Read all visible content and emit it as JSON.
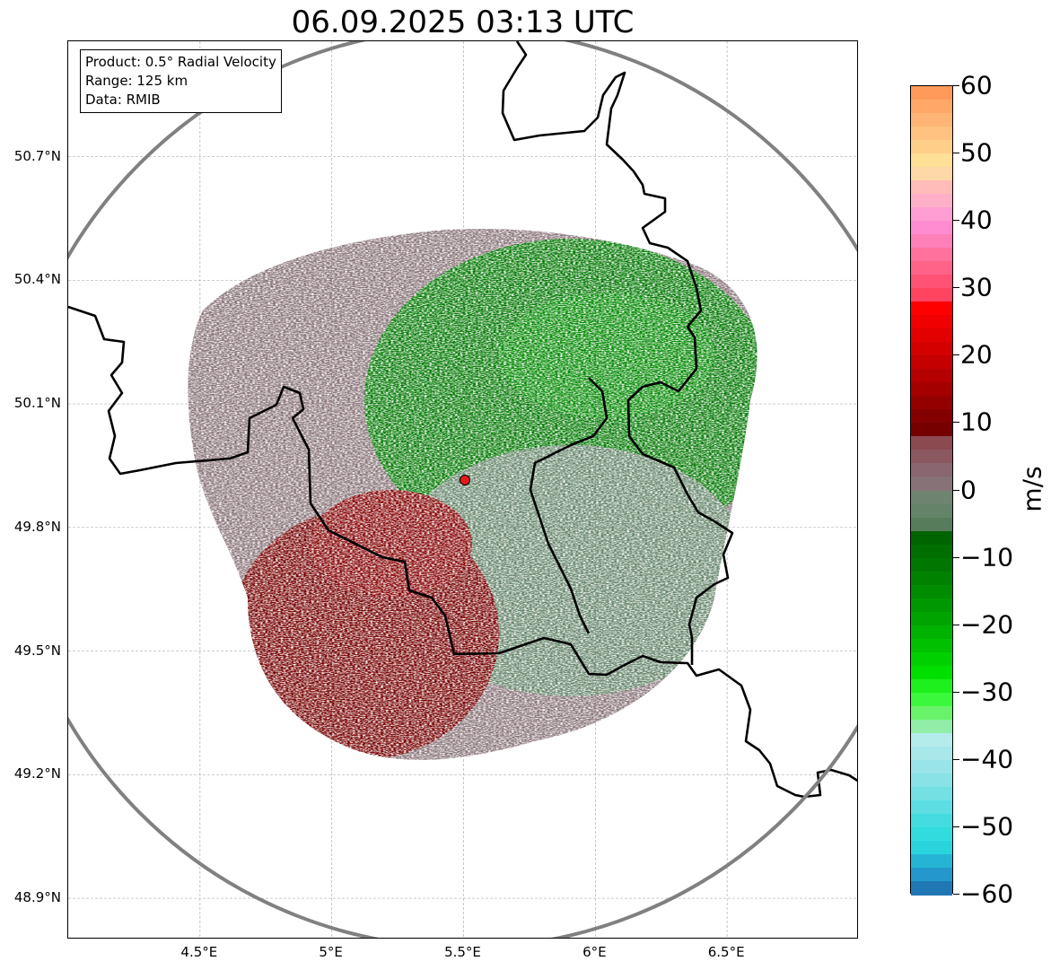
{
  "title": "06.09.2025 03:13 UTC",
  "info_box": {
    "product": "Product: 0.5° Radial Velocity",
    "range": "Range: 125 km",
    "data_source": "Data: RMIB"
  },
  "map": {
    "lon_range": [
      4.0,
      7.0
    ],
    "lat_range": [
      48.8,
      50.98
    ],
    "x_ticks": [
      {
        "lon": 4.5,
        "label": "4.5°E"
      },
      {
        "lon": 5.0,
        "label": "5°E"
      },
      {
        "lon": 5.5,
        "label": "5.5°E"
      },
      {
        "lon": 6.0,
        "label": "6°E"
      },
      {
        "lon": 6.5,
        "label": "6.5°E"
      }
    ],
    "y_ticks": [
      {
        "lat": 50.7,
        "label": "50.7°N"
      },
      {
        "lat": 50.4,
        "label": "50.4°N"
      },
      {
        "lat": 50.1,
        "label": "50.1°N"
      },
      {
        "lat": 49.8,
        "label": "49.8°N"
      },
      {
        "lat": 49.5,
        "label": "49.5°N"
      },
      {
        "lat": 49.2,
        "label": "49.2°N"
      },
      {
        "lat": 48.9,
        "label": "48.9°N"
      }
    ],
    "grid": true,
    "radar_site": {
      "lon": 5.505,
      "lat": 49.915,
      "color": "#e31a1c"
    },
    "range_ring_color": "#808080",
    "border_color": "#000000"
  },
  "colorbar": {
    "unit": "m/s",
    "min": -60,
    "max": 60,
    "ticks": [
      {
        "value": 60,
        "label": "60"
      },
      {
        "value": 50,
        "label": "50"
      },
      {
        "value": 40,
        "label": "40"
      },
      {
        "value": 30,
        "label": "30"
      },
      {
        "value": 20,
        "label": "20"
      },
      {
        "value": 10,
        "label": "10"
      },
      {
        "value": 0,
        "label": "0"
      },
      {
        "value": -10,
        "label": "−10"
      },
      {
        "value": -20,
        "label": "−20"
      },
      {
        "value": -30,
        "label": "−30"
      },
      {
        "value": -40,
        "label": "−40"
      },
      {
        "value": -50,
        "label": "−50"
      },
      {
        "value": -60,
        "label": "−60"
      }
    ],
    "segments": [
      {
        "from": 58,
        "to": 60,
        "color": "#ff9a5a"
      },
      {
        "from": 56,
        "to": 58,
        "color": "#ffa868"
      },
      {
        "from": 54,
        "to": 56,
        "color": "#ffb575"
      },
      {
        "from": 52,
        "to": 54,
        "color": "#ffc280"
      },
      {
        "from": 50,
        "to": 52,
        "color": "#ffcf8a"
      },
      {
        "from": 48,
        "to": 50,
        "color": "#ffe096"
      },
      {
        "from": 46,
        "to": 48,
        "color": "#ffd8a8"
      },
      {
        "from": 44,
        "to": 46,
        "color": "#ffbcb8"
      },
      {
        "from": 42,
        "to": 44,
        "color": "#ffb0c8"
      },
      {
        "from": 40,
        "to": 42,
        "color": "#ff9ed2"
      },
      {
        "from": 38,
        "to": 40,
        "color": "#ff8cd0"
      },
      {
        "from": 36,
        "to": 38,
        "color": "#ff80b8"
      },
      {
        "from": 34,
        "to": 36,
        "color": "#ff729e"
      },
      {
        "from": 32,
        "to": 34,
        "color": "#ff6488"
      },
      {
        "from": 30,
        "to": 32,
        "color": "#ff5274"
      },
      {
        "from": 28,
        "to": 30,
        "color": "#ff4460"
      },
      {
        "from": 26,
        "to": 28,
        "color": "#ff0000"
      },
      {
        "from": 24,
        "to": 26,
        "color": "#f00000"
      },
      {
        "from": 22,
        "to": 24,
        "color": "#e20000"
      },
      {
        "from": 20,
        "to": 22,
        "color": "#d40000"
      },
      {
        "from": 18,
        "to": 20,
        "color": "#c40000"
      },
      {
        "from": 16,
        "to": 18,
        "color": "#b40000"
      },
      {
        "from": 14,
        "to": 16,
        "color": "#a40000"
      },
      {
        "from": 12,
        "to": 14,
        "color": "#940000"
      },
      {
        "from": 10,
        "to": 12,
        "color": "#840000"
      },
      {
        "from": 8,
        "to": 10,
        "color": "#760000"
      },
      {
        "from": 6,
        "to": 8,
        "color": "#8a4a50"
      },
      {
        "from": 4,
        "to": 6,
        "color": "#8c5860"
      },
      {
        "from": 2,
        "to": 4,
        "color": "#8a6670"
      },
      {
        "from": 0,
        "to": 2,
        "color": "#877277"
      },
      {
        "from": -2,
        "to": 0,
        "color": "#6f8470"
      },
      {
        "from": -4,
        "to": -2,
        "color": "#638468"
      },
      {
        "from": -6,
        "to": -4,
        "color": "#567c5c"
      },
      {
        "from": -8,
        "to": -6,
        "color": "#006400"
      },
      {
        "from": -10,
        "to": -8,
        "color": "#006e00"
      },
      {
        "from": -12,
        "to": -10,
        "color": "#007800"
      },
      {
        "from": -14,
        "to": -12,
        "color": "#008200"
      },
      {
        "from": -16,
        "to": -14,
        "color": "#008c00"
      },
      {
        "from": -18,
        "to": -16,
        "color": "#009800"
      },
      {
        "from": -20,
        "to": -18,
        "color": "#00a400"
      },
      {
        "from": -22,
        "to": -20,
        "color": "#00b200"
      },
      {
        "from": -24,
        "to": -22,
        "color": "#00c000"
      },
      {
        "from": -26,
        "to": -24,
        "color": "#00d000"
      },
      {
        "from": -28,
        "to": -26,
        "color": "#00e000"
      },
      {
        "from": -30,
        "to": -28,
        "color": "#1ef01e"
      },
      {
        "from": -32,
        "to": -30,
        "color": "#3cf83c"
      },
      {
        "from": -34,
        "to": -32,
        "color": "#6af26a"
      },
      {
        "from": -36,
        "to": -34,
        "color": "#90eea8"
      },
      {
        "from": -38,
        "to": -36,
        "color": "#b4ecec"
      },
      {
        "from": -40,
        "to": -38,
        "color": "#a8e8ea"
      },
      {
        "from": -42,
        "to": -40,
        "color": "#98e4e8"
      },
      {
        "from": -44,
        "to": -42,
        "color": "#88e2e6"
      },
      {
        "from": -46,
        "to": -44,
        "color": "#74e0e4"
      },
      {
        "from": -48,
        "to": -46,
        "color": "#5cdee2"
      },
      {
        "from": -50,
        "to": -48,
        "color": "#44dce0"
      },
      {
        "from": -52,
        "to": -50,
        "color": "#32dcde"
      },
      {
        "from": -54,
        "to": -52,
        "color": "#2ad4dc"
      },
      {
        "from": -56,
        "to": -54,
        "color": "#26b4d4"
      },
      {
        "from": -58,
        "to": -56,
        "color": "#2498cc"
      },
      {
        "from": -60,
        "to": -58,
        "color": "#1f77b4"
      }
    ]
  },
  "velocity_regions": [
    {
      "name": "inbound-northeast",
      "center": {
        "lon": 5.9,
        "lat": 50.2
      },
      "color": "#007800"
    },
    {
      "name": "inbound-east",
      "center": {
        "lon": 6.2,
        "lat": 49.75
      },
      "color": "#638468"
    },
    {
      "name": "outbound-southwest",
      "center": {
        "lon": 5.1,
        "lat": 49.55
      },
      "color": "#760000"
    },
    {
      "name": "near-zero-west",
      "center": {
        "lon": 5.05,
        "lat": 50.05
      },
      "color": "#877277"
    }
  ]
}
